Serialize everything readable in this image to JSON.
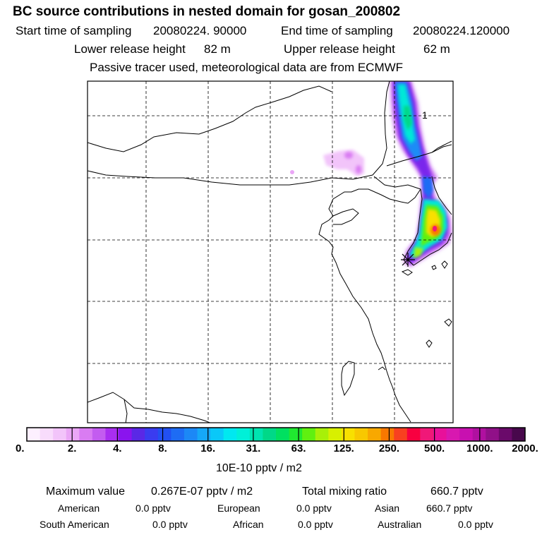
{
  "title": "BC  source contributions in nested domain for gosan_200802",
  "sampling": {
    "start_label": "Start time of sampling",
    "start_value": "20080224. 90000",
    "end_label": "End time of sampling",
    "end_value": "20080224.120000"
  },
  "release": {
    "lower_label": "Lower release height",
    "lower_value": "82 m",
    "upper_label": "Upper release height",
    "upper_value": "62 m"
  },
  "note": "Passive tracer used, meteorological data are from ECMWF",
  "map": {
    "contour_label": "1",
    "colors": {
      "coast": "#000000",
      "grid": "#000000",
      "marker": "#000000"
    }
  },
  "colorbar": {
    "colors": [
      "#fdf0ff",
      "#f8dcfc",
      "#f2c4fa",
      "#eaa6f6",
      "#d97cf2",
      "#c35cf0",
      "#a92ef0",
      "#8a14ee",
      "#5a28e6",
      "#3a3cf0",
      "#2250f2",
      "#1e6cf4",
      "#1c88f6",
      "#16a8f8",
      "#0ac8f8",
      "#00e8f0",
      "#00f0d8",
      "#00e4b0",
      "#00d888",
      "#00e060",
      "#20e830",
      "#60f010",
      "#a8f008",
      "#d8f000",
      "#f8e000",
      "#f8c800",
      "#f8a800",
      "#f87800",
      "#f84020",
      "#f80040",
      "#f01878",
      "#e8109a",
      "#d818b0",
      "#c810b0",
      "#b010a0",
      "#901088",
      "#6a0a6a",
      "#48084c"
    ],
    "tick_labels": [
      "0.",
      "2.",
      "4.",
      "8.",
      "16.",
      "31.",
      "63.",
      "125.",
      "250.",
      "500.",
      "1000.",
      "2000."
    ],
    "unit": "10E-10 pptv / m2"
  },
  "summary": {
    "max_label": "Maximum value",
    "max_value": "0.267E-07 pptv / m2",
    "total_label": "Total mixing ratio",
    "total_value": "660.7 pptv"
  },
  "regions": [
    {
      "name": "American",
      "value": "0.0 pptv"
    },
    {
      "name": "European",
      "value": "0.0 pptv"
    },
    {
      "name": "Asian",
      "value": "660.7 pptv"
    },
    {
      "name": "South American",
      "value": "0.0 pptv"
    },
    {
      "name": "African",
      "value": "0.0 pptv"
    },
    {
      "name": "Australian",
      "value": "0.0 pptv"
    }
  ]
}
